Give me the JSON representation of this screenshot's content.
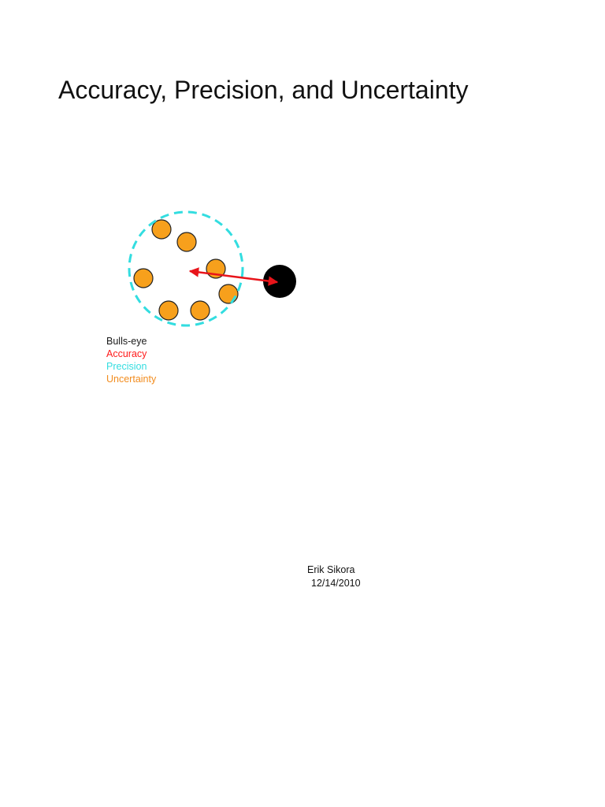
{
  "title": "Accuracy, Precision, and Uncertainty",
  "legend": [
    {
      "label": "Bulls-eye",
      "color": "#1a1a1a"
    },
    {
      "label": "Accuracy",
      "color": "#ff1a1a"
    },
    {
      "label": "Precision",
      "color": "#33dde0"
    },
    {
      "label": "Uncertainty",
      "color": "#f28c1e"
    }
  ],
  "colors": {
    "dot_fill": "#f7a01c",
    "bullseye": "#000000",
    "arrow": "#e8141a",
    "precision_circle": "#33dde0"
  },
  "author": "Erik Sikora",
  "date": "12/14/2010"
}
